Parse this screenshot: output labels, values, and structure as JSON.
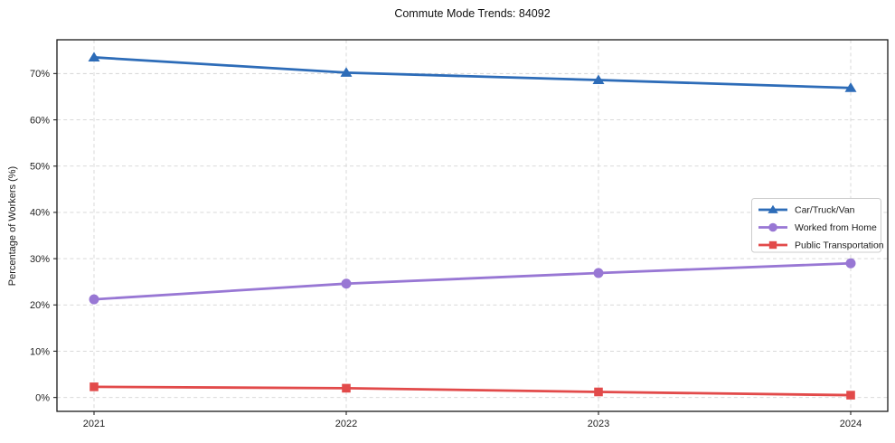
{
  "title": "Commute Mode Trends: 84092",
  "chart_data": {
    "type": "line",
    "title": "Commute Mode Trends: 84092",
    "xlabel": "",
    "ylabel": "Percentage of Workers (%)",
    "categories": [
      "2021",
      "2022",
      "2023",
      "2024"
    ],
    "series": [
      {
        "name": "Car/Truck/Van",
        "color": "#2d6cb8",
        "marker": "triangle",
        "values": [
          73.5,
          70.2,
          68.6,
          66.9
        ]
      },
      {
        "name": "Worked from Home",
        "color": "#9877d4",
        "marker": "circle",
        "values": [
          21.2,
          24.6,
          26.9,
          29.0
        ]
      },
      {
        "name": "Public Transportation",
        "color": "#e24a4a",
        "marker": "square",
        "values": [
          2.3,
          2.0,
          1.2,
          0.5
        ]
      }
    ],
    "y_ticks": [
      0,
      10,
      20,
      30,
      40,
      50,
      60,
      70
    ],
    "y_tick_suffix": "%",
    "ylim": [
      -3,
      77.3
    ],
    "grid": "dashed-both-axes",
    "grid_color": "#d4d4d4",
    "legend_position": "right-middle",
    "legend_entries": [
      "Car/Truck/Van",
      "Worked from Home",
      "Public Transportation"
    ]
  }
}
